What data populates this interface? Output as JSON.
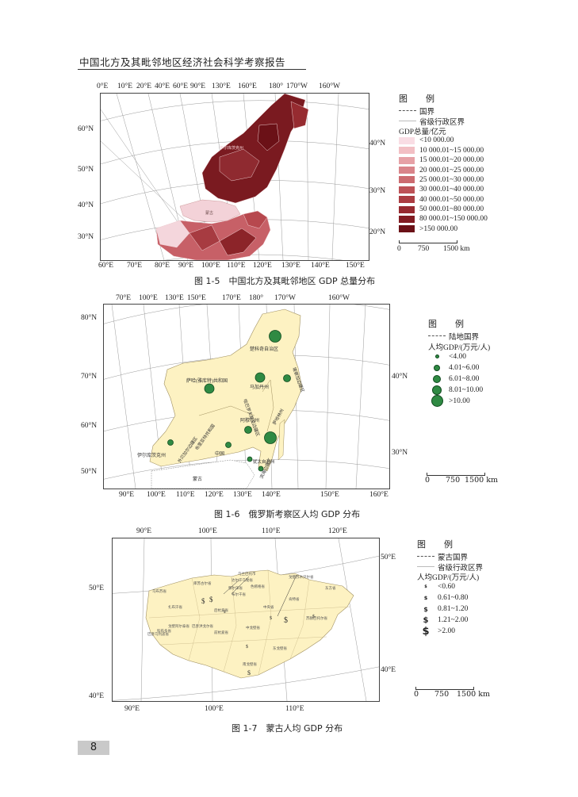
{
  "page": {
    "header": "中国北方及其毗邻地区经济社会科学考察报告",
    "page_number": "8"
  },
  "fig1": {
    "caption": "图 1-5　中国北方及其毗邻地区 GDP 总量分布",
    "top_labels": [
      "0°E",
      "10°E",
      "20°E",
      "40°E",
      "60°E",
      "90°E",
      "130°E",
      "160°E",
      "180°",
      "170°W",
      "160°W"
    ],
    "bottom_labels": [
      "60°E",
      "70°E",
      "80°E",
      "90°E",
      "100°E",
      "110°E",
      "120°E",
      "130°E",
      "140°E",
      "150°E"
    ],
    "left_labels": [
      "60°N",
      "50°N",
      "40°N",
      "30°N"
    ],
    "right_labels": [
      "40°N",
      "30°N",
      "20°N"
    ],
    "map_labels": [
      "伊尔库茨克州",
      "蒙古"
    ],
    "legend": {
      "title": "图　例",
      "lines": [
        "国界",
        "省级行政区界"
      ],
      "subtitle": "GDP总量/亿元",
      "classes": [
        {
          "label": "<10 000.00",
          "color": "#f9dde4"
        },
        {
          "label": "10 000.01~15 000.00",
          "color": "#f2bfc4"
        },
        {
          "label": "15 000.01~20 000.00",
          "color": "#e6a1a6"
        },
        {
          "label": "20 000.01~25 000.00",
          "color": "#d9848a"
        },
        {
          "label": "25 000.01~30 000.00",
          "color": "#cc6b70"
        },
        {
          "label": "30 000.01~40 000.00",
          "color": "#bd5257"
        },
        {
          "label": "40 000.01~50 000.00",
          "color": "#ab3d42"
        },
        {
          "label": "50 000.01~80 000.00",
          "color": "#972a30"
        },
        {
          "label": "80 000.01~150 000.00",
          "color": "#821c22"
        },
        {
          "label": ">150 000.00",
          "color": "#6b1117"
        }
      ],
      "scale": [
        "0",
        "750",
        "1500 km"
      ]
    }
  },
  "fig2": {
    "caption": "图 1-6　俄罗斯考察区人均 GDP 分布",
    "top_labels": [
      "70°E",
      "100°E",
      "130°E",
      "150°E",
      "170°E",
      "180°",
      "170°W",
      "160°W"
    ],
    "bottom_labels": [
      "90°E",
      "100°E",
      "110°E",
      "120°E",
      "130°E",
      "140°E",
      "150°E",
      "160°E"
    ],
    "left_labels": [
      "80°N",
      "70°N",
      "60°N",
      "50°N"
    ],
    "right_labels": [
      "40°N",
      "30°N"
    ],
    "map_labels": [
      "楚科奇自治区",
      "马加丹州",
      "堪察加边疆区",
      "萨哈(雅库特)共和国",
      "阿穆尔州",
      "哈巴罗夫斯克边疆区",
      "萨哈林州",
      "伊尔库茨克州",
      "外贝加尔边疆区",
      "布里亚特共和国",
      "犹太自治州",
      "滨海边疆区",
      "中国",
      "蒙古"
    ],
    "legend": {
      "title": "图　例",
      "lines": [
        "陆地国界"
      ],
      "subtitle": "人均GDP/(万元/人)",
      "classes": [
        "<4.00",
        "4.01~6.00",
        "6.01~8.00",
        "8.01~10.00",
        ">10.00"
      ],
      "scale": [
        "0",
        "750",
        "1500 km"
      ]
    }
  },
  "fig3": {
    "caption": "图 1-7　蒙古人均 GDP 分布",
    "top_labels": [
      "90°E",
      "100°E",
      "110°E",
      "120°E"
    ],
    "bottom_labels": [
      "90°E",
      "100°E",
      "110°E"
    ],
    "left_labels": [
      "50°E",
      "40°E"
    ],
    "right_labels": [
      "50°E",
      "40°E"
    ],
    "map_labels": [
      "乌布苏省",
      "库苏古尔省",
      "布尔干省",
      "色楞格省",
      "达尔汗乌勒省",
      "鄂尔浑省",
      "乌兰巴托市",
      "肯特省",
      "东方省",
      "中央省",
      "扎布汗省",
      "后杭爱省",
      "巴彦乌列盖省",
      "科布多省",
      "戈壁阿尔泰省",
      "前杭爱省",
      "巴彦洪戈尔省",
      "苏赫巴托尔省",
      "中戈壁省",
      "东戈壁省",
      "南戈壁省",
      "戈壁苏木贝尔省"
    ],
    "legend": {
      "title": "图　例",
      "lines": [
        "蒙古国界",
        "省级行政区界"
      ],
      "subtitle": "人均GDP/(万元/人)",
      "classes": [
        "<0.60",
        "0.61~0.80",
        "0.81~1.20",
        "1.21~2.00",
        ">2.00"
      ],
      "scale": [
        "0",
        "750",
        "1500 km"
      ]
    }
  }
}
